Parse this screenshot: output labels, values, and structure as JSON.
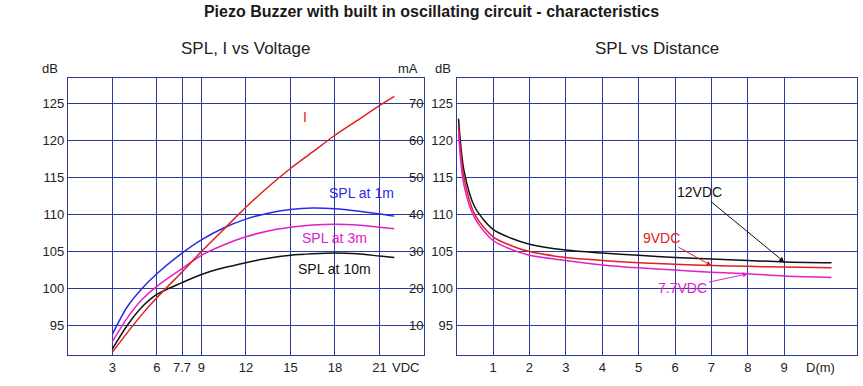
{
  "title": "Piezo Buzzer with built in oscillating circuit - characteristics",
  "chart_data": [
    {
      "type": "line",
      "title": "SPL, I vs Voltage",
      "xlabel": "VDC",
      "ylabel": "dB",
      "y2label": "mA",
      "x": [
        3,
        4,
        5,
        6,
        7.7,
        9,
        10.5,
        12,
        13.5,
        15,
        16.5,
        18,
        19.5,
        21,
        22
      ],
      "xlim": [
        0,
        24
      ],
      "xticks": [
        3,
        6,
        7.7,
        9,
        12,
        15,
        18,
        21
      ],
      "ylim": [
        91,
        128.5
      ],
      "yticks": [
        95,
        100,
        105,
        110,
        115,
        120,
        125
      ],
      "y2lim": [
        2,
        77
      ],
      "y2ticks": [
        10,
        20,
        30,
        40,
        50,
        60,
        70
      ],
      "grid": true,
      "series": [
        {
          "name": "I",
          "color": "#e02020",
          "axis": "y2",
          "values": [
            2.7,
            8,
            13,
            17.5,
            24.5,
            30,
            36,
            42,
            47.5,
            52.5,
            57,
            61.5,
            65.5,
            69.5,
            72
          ]
        },
        {
          "name": "SPL at 1m",
          "color": "#2a2ae8",
          "values": [
            93.8,
            97.5,
            100,
            102,
            104.8,
            106.6,
            108.2,
            109.4,
            110.2,
            110.7,
            110.9,
            110.8,
            110.5,
            110.1,
            109.8
          ]
        },
        {
          "name": "SPL at 3m",
          "color": "#e020c8",
          "values": [
            92.8,
            96,
            98.5,
            100.3,
            102.7,
            104.5,
            105.9,
            107,
            107.8,
            108.3,
            108.6,
            108.7,
            108.6,
            108.3,
            108.1
          ]
        },
        {
          "name": "SPL at 10m",
          "color": "#111111",
          "values": [
            91.8,
            95,
            97.5,
            99.2,
            100.8,
            101.9,
            102.8,
            103.5,
            104.1,
            104.5,
            104.7,
            104.8,
            104.7,
            104.4,
            104.2
          ]
        }
      ]
    },
    {
      "type": "line",
      "title": "SPL vs Distance",
      "xlabel": "D(m)",
      "ylabel": "dB",
      "x": [
        0.05,
        0.2,
        0.5,
        1,
        1.5,
        2,
        3,
        4,
        5,
        6,
        7,
        8,
        9,
        10.3
      ],
      "xlim": [
        0,
        11
      ],
      "xticks": [
        1,
        2,
        3,
        4,
        5,
        6,
        7,
        8,
        9
      ],
      "ylim": [
        91,
        128.5
      ],
      "yticks": [
        95,
        100,
        105,
        110,
        115,
        120,
        125
      ],
      "grid": true,
      "series": [
        {
          "name": "12VDC",
          "color": "#111111",
          "values": [
            123,
            116,
            111,
            108,
            106.8,
            106,
            105.2,
            104.8,
            104.5,
            104.2,
            104,
            103.8,
            103.6,
            103.5
          ]
        },
        {
          "name": "9VDC",
          "color": "#e02020",
          "values": [
            122,
            115,
            110,
            107,
            105.8,
            105,
            104.2,
            103.8,
            103.5,
            103.3,
            103.1,
            103,
            102.9,
            102.8
          ]
        },
        {
          "name": "7.7VDC",
          "color": "#e020c8",
          "values": [
            121,
            114,
            109.5,
            106.5,
            105.3,
            104.5,
            103.8,
            103.2,
            102.8,
            102.5,
            102.2,
            102,
            101.7,
            101.5
          ]
        }
      ]
    }
  ]
}
